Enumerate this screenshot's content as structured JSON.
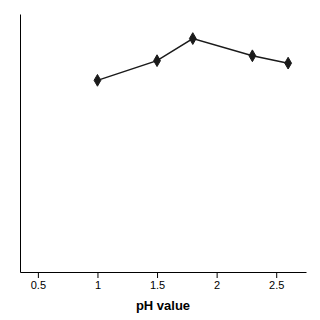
{
  "chart_data": {
    "type": "line",
    "xlabel": "pH value",
    "x": [
      1.0,
      1.5,
      1.8,
      2.3,
      2.6
    ],
    "values": [
      78,
      86,
      95,
      88,
      85
    ],
    "color": "#1a1a1a",
    "marker": "diamond",
    "xlim": [
      0.35,
      2.75
    ],
    "ylim": [
      0,
      105
    ],
    "xticks": [
      0.5,
      1,
      1.5,
      2,
      2.5
    ],
    "tick_labels": "x"
  }
}
